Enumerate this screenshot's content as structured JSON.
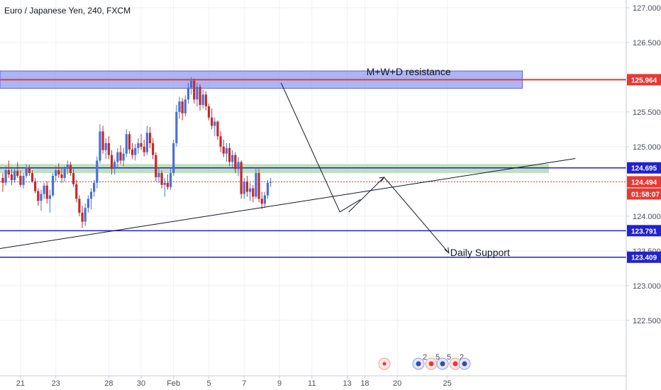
{
  "chart_data": {
    "type": "candlestick",
    "title": "Euro / Japanese Yen, 240, FXCM",
    "ylim": [
      122.1,
      127.05
    ],
    "price_ticks": [
      "127.000",
      "126.500",
      "126.000",
      "125.500",
      "125.000",
      "124.500",
      "124.000",
      "123.500",
      "123.000",
      "122.500"
    ],
    "time_ticks": [
      {
        "label": "21",
        "slot": 6
      },
      {
        "label": "23",
        "slot": 18
      },
      {
        "label": "28",
        "slot": 36
      },
      {
        "label": "30",
        "slot": 47
      },
      {
        "label": "Feb",
        "slot": 58
      },
      {
        "label": "5",
        "slot": 70
      },
      {
        "label": "7",
        "slot": 82
      },
      {
        "label": "9",
        "slot": 94
      },
      {
        "label": "11",
        "slot": 105
      },
      {
        "label": "13",
        "slot": 117
      },
      {
        "label": "18",
        "slot": 123
      },
      {
        "label": "20",
        "slot": 134
      },
      {
        "label": "25",
        "slot": 151
      }
    ],
    "candles": [
      [
        124.55,
        124.62,
        124.35,
        124.48
      ],
      [
        124.48,
        124.72,
        124.44,
        124.66
      ],
      [
        124.66,
        124.8,
        124.55,
        124.6
      ],
      [
        124.6,
        124.68,
        124.45,
        124.52
      ],
      [
        124.52,
        124.7,
        124.48,
        124.65
      ],
      [
        124.65,
        124.78,
        124.55,
        124.58
      ],
      [
        124.58,
        124.66,
        124.42,
        124.45
      ],
      [
        124.45,
        124.62,
        124.4,
        124.58
      ],
      [
        124.58,
        124.75,
        124.55,
        124.7
      ],
      [
        124.7,
        124.74,
        124.58,
        124.62
      ],
      [
        124.62,
        124.66,
        124.48,
        124.5
      ],
      [
        124.5,
        124.55,
        124.33,
        124.36
      ],
      [
        124.36,
        124.4,
        124.15,
        124.22
      ],
      [
        124.22,
        124.38,
        124.08,
        124.32
      ],
      [
        124.32,
        124.48,
        124.25,
        124.44
      ],
      [
        124.44,
        124.5,
        124.18,
        124.25
      ],
      [
        124.25,
        124.38,
        124.05,
        124.3
      ],
      [
        124.3,
        124.62,
        124.28,
        124.58
      ],
      [
        124.58,
        124.72,
        124.5,
        124.66
      ],
      [
        124.66,
        124.76,
        124.55,
        124.6
      ],
      [
        124.6,
        124.7,
        124.48,
        124.55
      ],
      [
        124.55,
        124.72,
        124.5,
        124.68
      ],
      [
        124.68,
        124.8,
        124.6,
        124.74
      ],
      [
        124.74,
        124.78,
        124.58,
        124.62
      ],
      [
        124.62,
        124.68,
        124.42,
        124.46
      ],
      [
        124.46,
        124.52,
        124.2,
        124.25
      ],
      [
        124.25,
        124.3,
        124.0,
        124.05
      ],
      [
        124.05,
        124.15,
        123.83,
        123.92
      ],
      [
        123.92,
        124.18,
        123.86,
        124.12
      ],
      [
        124.12,
        124.3,
        124.05,
        124.25
      ],
      [
        124.25,
        124.4,
        124.1,
        124.35
      ],
      [
        124.35,
        124.52,
        124.28,
        124.48
      ],
      [
        124.48,
        124.86,
        124.4,
        124.8
      ],
      [
        124.8,
        125.32,
        124.76,
        125.22
      ],
      [
        125.22,
        125.3,
        124.9,
        124.95
      ],
      [
        124.95,
        125.12,
        124.82,
        125.05
      ],
      [
        125.05,
        125.15,
        124.82,
        124.88
      ],
      [
        124.88,
        124.95,
        124.6,
        124.68
      ],
      [
        124.68,
        124.82,
        124.6,
        124.78
      ],
      [
        124.78,
        124.98,
        124.7,
        124.92
      ],
      [
        124.92,
        125.02,
        124.75,
        124.8
      ],
      [
        124.8,
        124.98,
        124.72,
        124.9
      ],
      [
        124.9,
        125.25,
        124.85,
        125.18
      ],
      [
        125.18,
        125.22,
        124.9,
        124.96
      ],
      [
        124.96,
        125.05,
        124.82,
        124.88
      ],
      [
        124.88,
        125.04,
        124.8,
        124.98
      ],
      [
        124.98,
        125.12,
        124.9,
        125.05
      ],
      [
        125.05,
        125.18,
        124.95,
        125.0
      ],
      [
        125.0,
        125.1,
        124.86,
        124.92
      ],
      [
        124.92,
        125.3,
        124.88,
        125.2
      ],
      [
        125.2,
        125.28,
        124.98,
        125.05
      ],
      [
        125.05,
        125.12,
        124.82,
        124.88
      ],
      [
        124.88,
        124.92,
        124.5,
        124.56
      ],
      [
        124.56,
        124.7,
        124.48,
        124.62
      ],
      [
        124.62,
        124.66,
        124.4,
        124.45
      ],
      [
        124.45,
        124.55,
        124.28,
        124.48
      ],
      [
        124.48,
        124.6,
        124.38,
        124.42
      ],
      [
        124.42,
        124.7,
        124.38,
        124.62
      ],
      [
        124.62,
        125.1,
        124.58,
        125.05
      ],
      [
        125.05,
        125.6,
        125.0,
        125.5
      ],
      [
        125.5,
        125.72,
        125.4,
        125.65
      ],
      [
        125.65,
        125.7,
        125.38,
        125.48
      ],
      [
        125.48,
        125.74,
        125.44,
        125.68
      ],
      [
        125.68,
        125.92,
        125.62,
        125.85
      ],
      [
        125.85,
        126.0,
        125.75,
        125.95
      ],
      [
        125.95,
        125.98,
        125.62,
        125.68
      ],
      [
        125.68,
        125.92,
        125.58,
        125.86
      ],
      [
        125.86,
        125.9,
        125.52,
        125.6
      ],
      [
        125.6,
        125.82,
        125.55,
        125.75
      ],
      [
        125.75,
        125.8,
        125.52,
        125.58
      ],
      [
        125.58,
        125.62,
        125.38,
        125.42
      ],
      [
        125.42,
        125.55,
        125.25,
        125.3
      ],
      [
        125.3,
        125.42,
        125.15,
        125.36
      ],
      [
        125.36,
        125.38,
        125.1,
        125.15
      ],
      [
        125.15,
        125.22,
        124.92,
        125.0
      ],
      [
        125.0,
        125.1,
        124.85,
        124.9
      ],
      [
        124.9,
        125.05,
        124.78,
        124.98
      ],
      [
        124.98,
        125.05,
        124.72,
        124.78
      ],
      [
        124.78,
        124.95,
        124.7,
        124.88
      ],
      [
        124.88,
        124.92,
        124.62,
        124.68
      ],
      [
        124.68,
        124.85,
        124.58,
        124.78
      ],
      [
        124.78,
        124.8,
        124.25,
        124.32
      ],
      [
        124.32,
        124.55,
        124.25,
        124.5
      ],
      [
        124.5,
        124.58,
        124.28,
        124.35
      ],
      [
        124.35,
        124.48,
        124.22,
        124.4
      ],
      [
        124.4,
        124.45,
        124.2,
        124.28
      ],
      [
        124.28,
        124.7,
        124.25,
        124.62
      ],
      [
        124.62,
        124.68,
        124.2,
        124.25
      ],
      [
        124.25,
        124.35,
        124.1,
        124.18
      ],
      [
        124.18,
        124.35,
        124.12,
        124.3
      ],
      [
        124.3,
        124.52,
        124.25,
        124.48
      ],
      [
        124.48,
        124.55,
        124.42,
        124.49
      ]
    ],
    "levels": [
      {
        "value": 125.964,
        "label": "125.964",
        "color": "#e53935"
      },
      {
        "value": 124.695,
        "label": "124.695",
        "color": "#2222cc"
      },
      {
        "value": 124.494,
        "label": "124.494",
        "color": "#e53935",
        "dotted": true,
        "countdown": "01:58:07"
      },
      {
        "value": 123.791,
        "label": "123.791",
        "color": "#2222cc"
      },
      {
        "value": 123.409,
        "label": "123.409",
        "color": "#2222cc"
      }
    ],
    "zones": [
      {
        "name": "resistance-zone",
        "y_top": 126.09,
        "y_bottom": 125.84,
        "x_end_slot": 177,
        "color": "#8c96f0",
        "text": "M+W+D resistance",
        "text_slot": 124
      },
      {
        "name": "support-zone",
        "y_top": 124.75,
        "y_bottom": 124.62,
        "x_end_slot": 186,
        "color": "#a5d3a0"
      }
    ],
    "trendline": {
      "from": {
        "slot": -1,
        "price": 123.53
      },
      "to": {
        "slot": 195,
        "price": 124.83
      }
    },
    "projection_text": "Daily Support",
    "events": [
      "2",
      "5",
      "5",
      "2"
    ],
    "colors": {
      "up": "#4a6fd8",
      "down": "#c62828"
    }
  }
}
